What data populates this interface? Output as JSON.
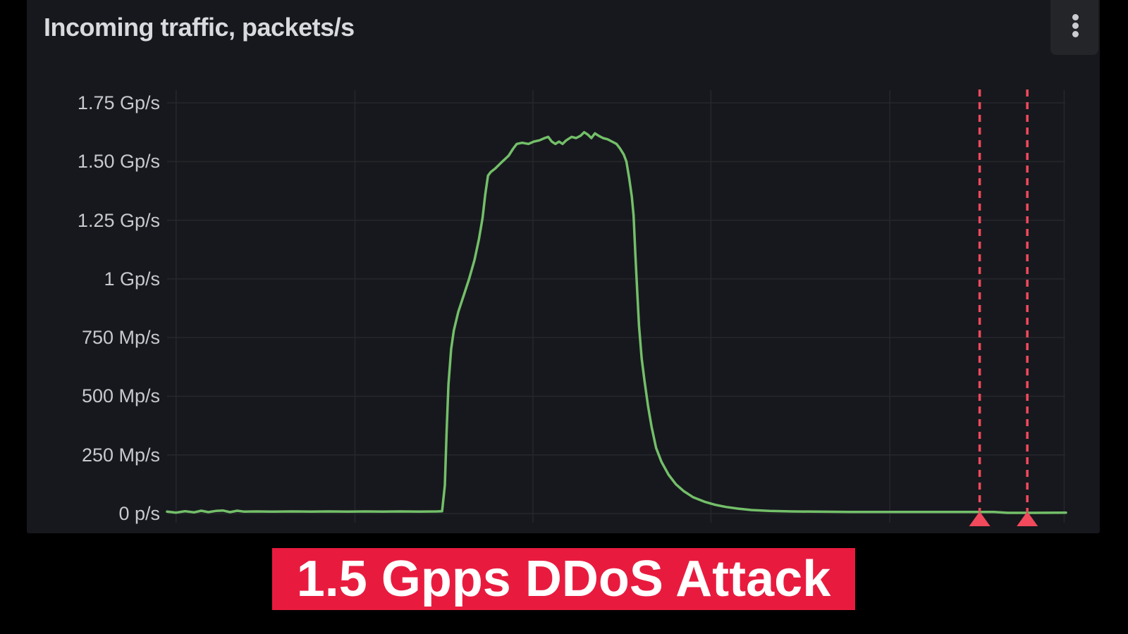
{
  "panel": {
    "title": "Incoming traffic, packets/s",
    "menu_icon": "kebab-vertical-icon"
  },
  "caption": {
    "text": "1.5 Gpps DDoS Attack",
    "bg_color": "#e81b3f",
    "text_color": "#ffffff"
  },
  "colors": {
    "background": "#000000",
    "panel_bg": "#17181d",
    "grid": "#26272d",
    "axis_text": "#c8c9cd",
    "title_text": "#d9dade",
    "series_green": "#73bf69",
    "annotation_red": "#f2495c",
    "banner_red": "#e81b3f"
  },
  "chart_data": {
    "type": "line",
    "title": "Incoming traffic, packets/s",
    "ylabel": "packets/s",
    "ylim_gpps": [
      0,
      1.75
    ],
    "grid": true,
    "legend": "none",
    "x_axis": {
      "unit": "time (labels not visible)",
      "range": [
        0,
        100
      ]
    },
    "y_ticks": [
      {
        "label": "1.75 Gp/s",
        "value": 1.75
      },
      {
        "label": "1.50 Gp/s",
        "value": 1.5
      },
      {
        "label": "1.25 Gp/s",
        "value": 1.25
      },
      {
        "label": "1 Gp/s",
        "value": 1.0
      },
      {
        "label": "750 Mp/s",
        "value": 0.75
      },
      {
        "label": "500 Mp/s",
        "value": 0.5
      },
      {
        "label": "250 Mp/s",
        "value": 0.25
      },
      {
        "label": "0 p/s",
        "value": 0.0
      }
    ],
    "x_gridlines_pct": [
      1.0,
      20.9,
      40.7,
      60.5,
      80.4,
      99.8
    ],
    "peak_gpps": 1.62,
    "series": [
      {
        "name": "Incoming traffic",
        "color": "#73bf69",
        "points": [
          [
            0,
            0.008
          ],
          [
            1,
            0.004
          ],
          [
            2,
            0.01
          ],
          [
            3,
            0.005
          ],
          [
            3.8,
            0.012
          ],
          [
            4.6,
            0.006
          ],
          [
            5.4,
            0.011
          ],
          [
            6.2,
            0.013
          ],
          [
            7.0,
            0.006
          ],
          [
            7.8,
            0.012
          ],
          [
            8.6,
            0.008
          ],
          [
            10,
            0.009
          ],
          [
            12,
            0.008
          ],
          [
            14,
            0.009
          ],
          [
            16,
            0.008
          ],
          [
            18,
            0.009
          ],
          [
            20,
            0.008
          ],
          [
            22,
            0.009
          ],
          [
            24,
            0.008
          ],
          [
            26,
            0.009
          ],
          [
            28,
            0.008
          ],
          [
            30,
            0.009
          ],
          [
            30.6,
            0.01
          ],
          [
            30.9,
            0.12
          ],
          [
            31.1,
            0.35
          ],
          [
            31.3,
            0.55
          ],
          [
            31.6,
            0.7
          ],
          [
            31.9,
            0.78
          ],
          [
            32.4,
            0.86
          ],
          [
            33.0,
            0.93
          ],
          [
            33.6,
            1.0
          ],
          [
            34.2,
            1.08
          ],
          [
            34.7,
            1.17
          ],
          [
            35.1,
            1.26
          ],
          [
            35.4,
            1.36
          ],
          [
            35.7,
            1.44
          ],
          [
            36.0,
            1.455
          ],
          [
            36.5,
            1.47
          ],
          [
            37.3,
            1.5
          ],
          [
            38.0,
            1.525
          ],
          [
            38.5,
            1.555
          ],
          [
            38.9,
            1.575
          ],
          [
            39.5,
            1.58
          ],
          [
            40.2,
            1.575
          ],
          [
            40.8,
            1.585
          ],
          [
            41.4,
            1.59
          ],
          [
            42.0,
            1.6
          ],
          [
            42.4,
            1.605
          ],
          [
            42.8,
            1.585
          ],
          [
            43.2,
            1.575
          ],
          [
            43.6,
            1.585
          ],
          [
            44.0,
            1.575
          ],
          [
            44.4,
            1.59
          ],
          [
            45.0,
            1.605
          ],
          [
            45.5,
            1.6
          ],
          [
            46.0,
            1.61
          ],
          [
            46.4,
            1.625
          ],
          [
            46.8,
            1.615
          ],
          [
            47.2,
            1.6
          ],
          [
            47.6,
            1.62
          ],
          [
            48.0,
            1.61
          ],
          [
            48.5,
            1.6
          ],
          [
            49.0,
            1.595
          ],
          [
            49.5,
            1.585
          ],
          [
            50.0,
            1.575
          ],
          [
            50.4,
            1.555
          ],
          [
            50.8,
            1.53
          ],
          [
            51.1,
            1.5
          ],
          [
            51.4,
            1.43
          ],
          [
            51.7,
            1.35
          ],
          [
            51.9,
            1.27
          ],
          [
            52.1,
            1.1
          ],
          [
            52.3,
            0.95
          ],
          [
            52.5,
            0.8
          ],
          [
            52.8,
            0.66
          ],
          [
            53.1,
            0.57
          ],
          [
            53.5,
            0.46
          ],
          [
            53.9,
            0.37
          ],
          [
            54.4,
            0.28
          ],
          [
            55.0,
            0.22
          ],
          [
            55.8,
            0.165
          ],
          [
            56.6,
            0.125
          ],
          [
            57.5,
            0.095
          ],
          [
            58.5,
            0.07
          ],
          [
            59.8,
            0.05
          ],
          [
            61.0,
            0.037
          ],
          [
            62.2,
            0.028
          ],
          [
            63.5,
            0.021
          ],
          [
            65.0,
            0.015
          ],
          [
            67.0,
            0.011
          ],
          [
            69.5,
            0.009
          ],
          [
            72,
            0.008
          ],
          [
            76,
            0.007
          ],
          [
            80,
            0.007
          ],
          [
            84,
            0.007
          ],
          [
            88,
            0.007
          ],
          [
            92,
            0.007
          ],
          [
            93.5,
            0.003
          ],
          [
            96,
            0.003
          ],
          [
            100,
            0.004
          ]
        ]
      }
    ],
    "annotations": [
      {
        "type": "vline",
        "x": 90.4,
        "style": "dashed",
        "color": "#f2495c",
        "marker": "triangle-up"
      },
      {
        "type": "vline",
        "x": 95.7,
        "style": "dashed",
        "color": "#f2495c",
        "marker": "triangle-up"
      }
    ]
  }
}
